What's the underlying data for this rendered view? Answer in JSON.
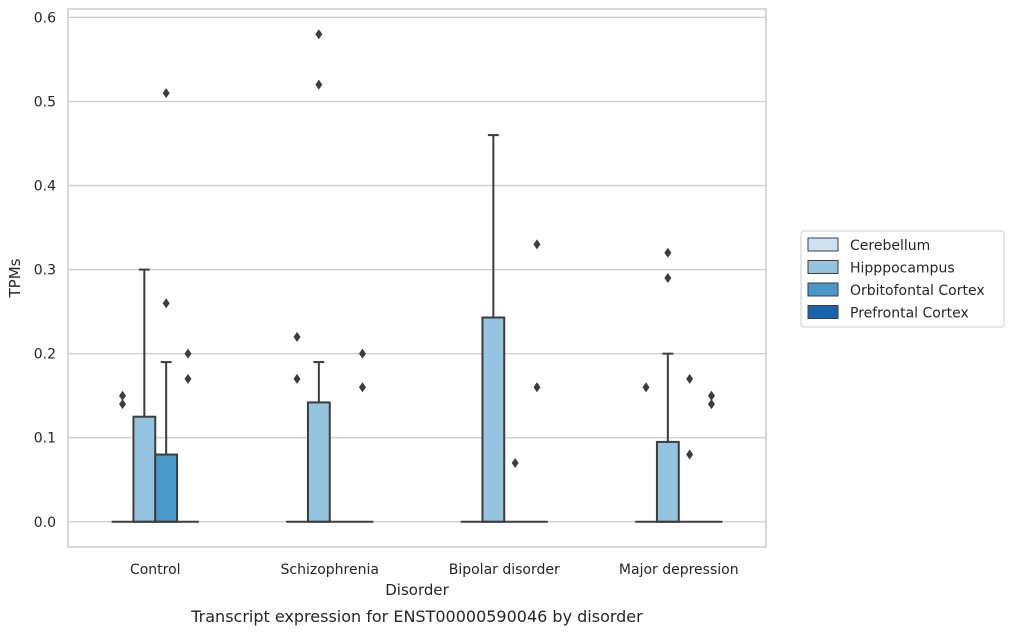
{
  "chart_data": {
    "type": "box",
    "title": "",
    "caption": "Transcript expression for ENST00000590046 by disorder",
    "xlabel": "Disorder",
    "ylabel": "TPMs",
    "ylim": [
      -0.03,
      0.61
    ],
    "yticks": [
      0.0,
      0.1,
      0.2,
      0.3,
      0.4,
      0.5,
      0.6
    ],
    "ytick_labels": [
      "0.0",
      "0.1",
      "0.2",
      "0.3",
      "0.4",
      "0.5",
      "0.6"
    ],
    "grid": "horizontal",
    "legend_position": "right",
    "categories": [
      "Control",
      "Schizophrenia",
      "Bipolar disorder",
      "Major depression"
    ],
    "series": [
      {
        "name": "Cerebellum",
        "color": "#d0e1f2",
        "boxes": [
          {
            "q1": 0,
            "median": 0,
            "q3": 0,
            "whisker_low": 0,
            "whisker_high": 0,
            "outliers": [
              0.14,
              0.15
            ]
          },
          {
            "q1": 0,
            "median": 0,
            "q3": 0,
            "whisker_low": 0,
            "whisker_high": 0,
            "outliers": [
              0.17,
              0.22
            ]
          },
          {
            "q1": 0,
            "median": 0,
            "q3": 0,
            "whisker_low": 0,
            "whisker_high": 0,
            "outliers": []
          },
          {
            "q1": 0,
            "median": 0,
            "q3": 0,
            "whisker_low": 0,
            "whisker_high": 0,
            "outliers": [
              0.16
            ]
          }
        ]
      },
      {
        "name": "Hipppocampus",
        "color": "#94c4df",
        "boxes": [
          {
            "q1": 0,
            "median": 0,
            "q3": 0.125,
            "whisker_low": 0,
            "whisker_high": 0.3,
            "outliers": []
          },
          {
            "q1": 0,
            "median": 0,
            "q3": 0.142,
            "whisker_low": 0,
            "whisker_high": 0.19,
            "outliers": [
              0.52,
              0.58
            ]
          },
          {
            "q1": 0,
            "median": 0,
            "q3": 0.243,
            "whisker_low": 0,
            "whisker_high": 0.46,
            "outliers": []
          },
          {
            "q1": 0,
            "median": 0,
            "q3": 0.095,
            "whisker_low": 0,
            "whisker_high": 0.2,
            "outliers": [
              0.29,
              0.32
            ]
          }
        ]
      },
      {
        "name": "Orbitofontal Cortex",
        "color": "#4a98c9",
        "boxes": [
          {
            "q1": 0,
            "median": 0,
            "q3": 0.08,
            "whisker_low": 0,
            "whisker_high": 0.19,
            "outliers": [
              0.26,
              0.51
            ]
          },
          {
            "q1": 0,
            "median": 0,
            "q3": 0,
            "whisker_low": 0,
            "whisker_high": 0,
            "outliers": []
          },
          {
            "q1": 0,
            "median": 0,
            "q3": 0,
            "whisker_low": 0,
            "whisker_high": 0,
            "outliers": [
              0.07
            ]
          },
          {
            "q1": 0,
            "median": 0,
            "q3": 0,
            "whisker_low": 0,
            "whisker_high": 0,
            "outliers": [
              0.08,
              0.17
            ]
          }
        ]
      },
      {
        "name": "Prefrontal Cortex",
        "color": "#1764ab",
        "boxes": [
          {
            "q1": 0,
            "median": 0,
            "q3": 0,
            "whisker_low": 0,
            "whisker_high": 0,
            "outliers": [
              0.17,
              0.2
            ]
          },
          {
            "q1": 0,
            "median": 0,
            "q3": 0,
            "whisker_low": 0,
            "whisker_high": 0,
            "outliers": [
              0.16,
              0.2
            ]
          },
          {
            "q1": 0,
            "median": 0,
            "q3": 0,
            "whisker_low": 0,
            "whisker_high": 0,
            "outliers": [
              0.16,
              0.33
            ]
          },
          {
            "q1": 0,
            "median": 0,
            "q3": 0,
            "whisker_low": 0,
            "whisker_high": 0,
            "outliers": [
              0.14,
              0.15
            ]
          }
        ]
      }
    ]
  }
}
